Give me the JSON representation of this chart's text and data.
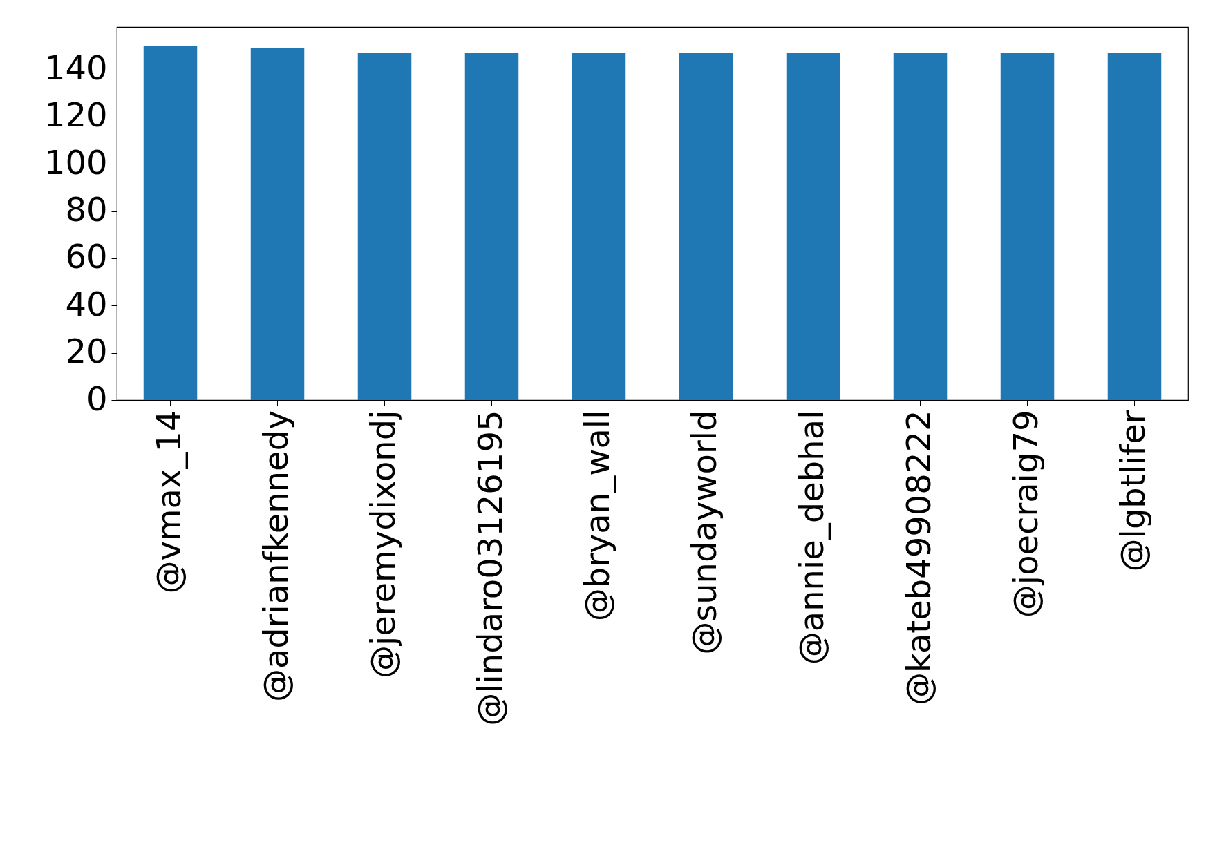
{
  "chart_data": {
    "type": "bar",
    "categories": [
      "@vmax_14",
      "@adrianfkennedy",
      "@jeremydixondj",
      "@lindaro03126195",
      "@bryan_wall",
      "@sundayworld",
      "@annie_debhal",
      "@kateb49908222",
      "@joecraig79",
      "@lgbtlifer"
    ],
    "values": [
      150,
      149,
      147,
      147,
      147,
      147,
      147,
      147,
      147,
      147
    ],
    "color": "#1f77b4",
    "ylim": [
      0,
      158
    ],
    "yticks": [
      0,
      20,
      40,
      60,
      80,
      100,
      120,
      140
    ],
    "grid": false
  }
}
